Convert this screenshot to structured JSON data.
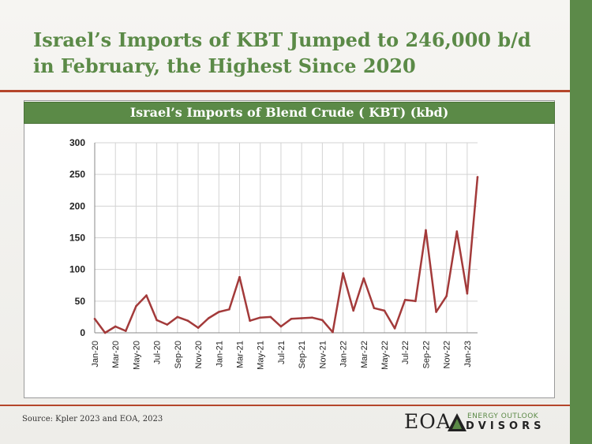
{
  "headline": "Israel’s Imports of KBT Jumped to 246,000 b/d in February, the Highest Since 2020",
  "source": "Source: Kpler 2023 and EOA, 2023",
  "logo": {
    "short": "EOA",
    "line1": "ENERGY OUTLOOK",
    "line2": "DVISORS"
  },
  "colors": {
    "accent_green": "#5b8a47",
    "rule_red": "#b5462b",
    "series_line": "#a33a3a"
  },
  "chart_data": {
    "type": "line",
    "title": "Israel’s Imports of Blend Crude ( KBT) (kbd)",
    "xlabel": "",
    "ylabel": "",
    "ylim": [
      0,
      300
    ],
    "yticks": [
      0,
      50,
      100,
      150,
      200,
      250,
      300
    ],
    "grid": true,
    "legend": "none",
    "x_labels_shown": [
      "Jan-20",
      "Mar-20",
      "May-20",
      "Jul-20",
      "Sep-20",
      "Nov-20",
      "Jan-21",
      "Mar-21",
      "May-21",
      "Jul-21",
      "Sep-21",
      "Nov-21",
      "Jan-22",
      "Mar-22",
      "May-22",
      "Jul-22",
      "Sep-22",
      "Nov-22",
      "Jan-23"
    ],
    "x": [
      "Jan-20",
      "Feb-20",
      "Mar-20",
      "Apr-20",
      "May-20",
      "Jun-20",
      "Jul-20",
      "Aug-20",
      "Sep-20",
      "Oct-20",
      "Nov-20",
      "Dec-20",
      "Jan-21",
      "Feb-21",
      "Mar-21",
      "Apr-21",
      "May-21",
      "Jun-21",
      "Jul-21",
      "Aug-21",
      "Sep-21",
      "Oct-21",
      "Nov-21",
      "Dec-21",
      "Jan-22",
      "Feb-22",
      "Mar-22",
      "Apr-22",
      "May-22",
      "Jun-22",
      "Jul-22",
      "Aug-22",
      "Sep-22",
      "Oct-22",
      "Nov-22",
      "Dec-22",
      "Jan-23",
      "Feb-23"
    ],
    "series": [
      {
        "values": [
          22,
          0,
          10,
          3,
          42,
          59,
          20,
          13,
          25,
          19,
          8,
          23,
          33,
          37,
          88,
          19,
          24,
          25,
          10,
          22,
          23,
          24,
          20,
          1,
          94,
          35,
          86,
          39,
          35,
          7,
          52,
          50,
          162,
          33,
          58,
          160,
          62,
          246
        ],
        "color": "#a33a3a"
      }
    ]
  }
}
